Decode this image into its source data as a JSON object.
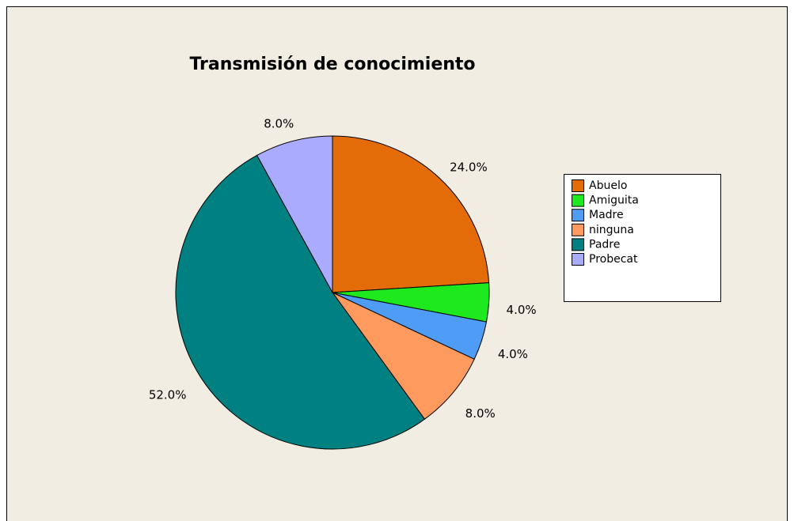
{
  "chart_data": {
    "type": "pie",
    "title": "Transmisión de conocimiento",
    "categories": [
      "Abuelo",
      "Amiguita",
      "Madre",
      "ninguna",
      "Padre",
      "Probecat"
    ],
    "values": [
      24,
      4,
      4,
      8,
      52,
      8
    ],
    "value_labels": [
      "24.0%",
      "4.0%",
      "4.0%",
      "8.0%",
      "52.0%",
      "8.0%"
    ],
    "colors": [
      "#e36c09",
      "#1ee81e",
      "#4f9cf5",
      "#ff9a5e",
      "#008080",
      "#aaaaff"
    ],
    "legend": "right"
  }
}
